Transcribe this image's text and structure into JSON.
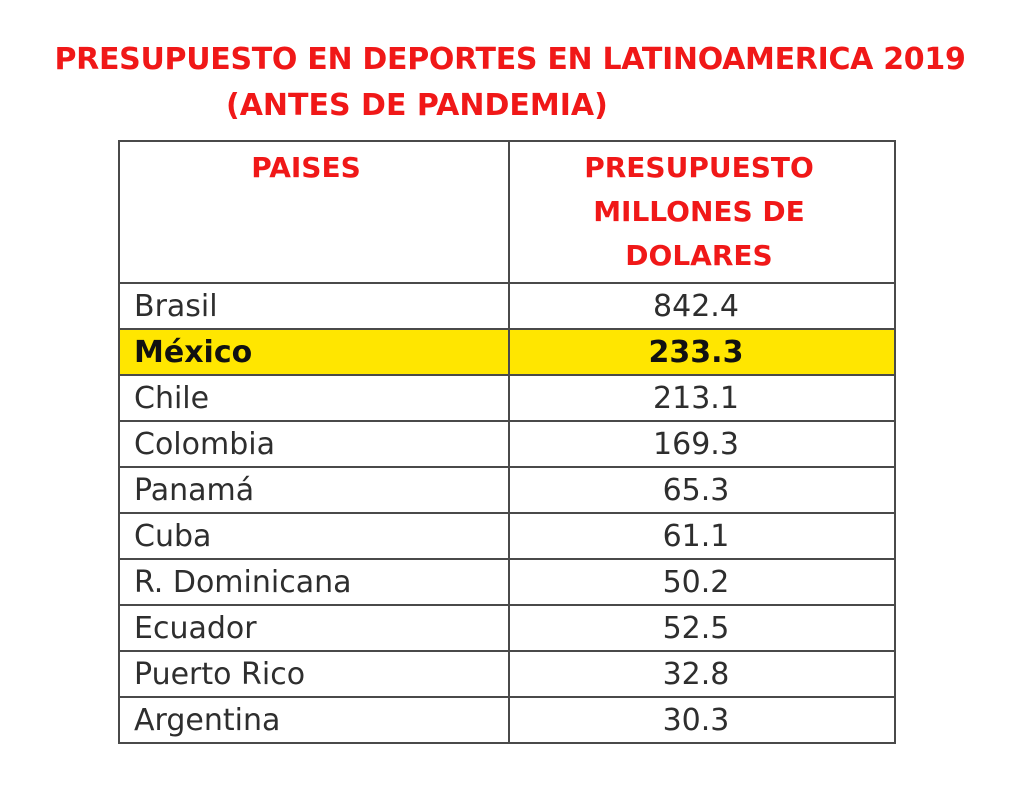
{
  "title_line1": "PRESUPUESTO EN DEPORTES EN LATINOAMERICA 2019",
  "title_line2": "(ANTES DE PANDEMIA)",
  "table": {
    "header_country": "PAISES",
    "header_budget_lines": [
      "PRESUPUESTO",
      "MILLONES DE",
      "DOLARES"
    ],
    "rows": [
      {
        "country": "Brasil",
        "value": "842.4",
        "highlight": false
      },
      {
        "country": "México",
        "value": "233.3",
        "highlight": true
      },
      {
        "country": "Chile",
        "value": "213.1",
        "highlight": false
      },
      {
        "country": "Colombia",
        "value": "169.3",
        "highlight": false
      },
      {
        "country": "Panamá",
        "value": "65.3",
        "highlight": false
      },
      {
        "country": "Cuba",
        "value": "61.1",
        "highlight": false
      },
      {
        "country": "R. Dominicana",
        "value": "50.2",
        "highlight": false
      },
      {
        "country": "Ecuador",
        "value": "52.5",
        "highlight": false
      },
      {
        "country": "Puerto Rico",
        "value": "32.8",
        "highlight": false
      },
      {
        "country": "Argentina",
        "value": "30.3",
        "highlight": false
      }
    ]
  },
  "colors": {
    "title_red": "#f01818",
    "highlight_yellow": "#ffe600",
    "border": "#4a4a4a"
  }
}
